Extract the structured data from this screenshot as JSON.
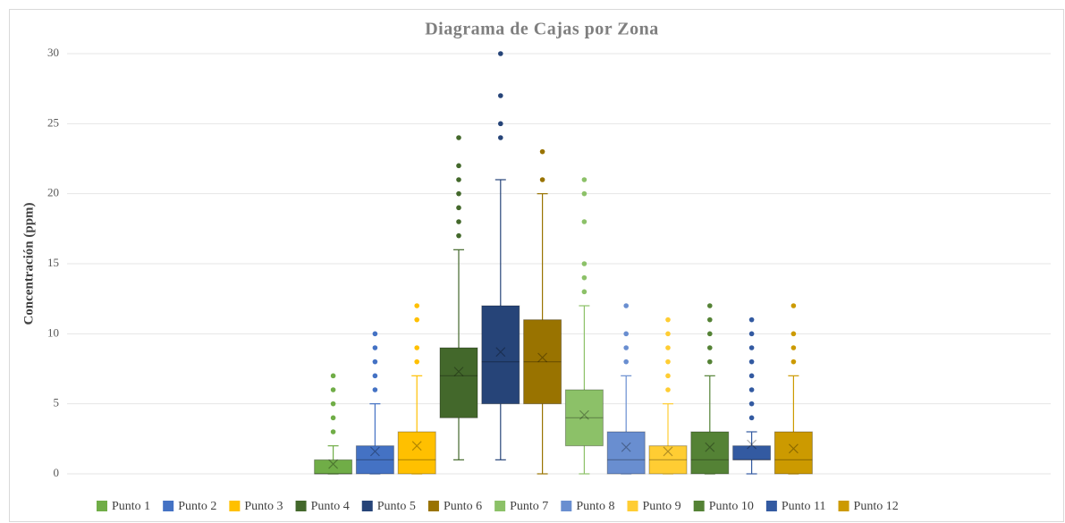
{
  "chart_data": {
    "type": "box",
    "title": "Diagrama de Cajas por Zona",
    "y_label": "Concentración (ppm)",
    "ylim": [
      0,
      30
    ],
    "yticks": [
      0,
      5,
      10,
      15,
      20,
      25,
      30
    ],
    "grid": true,
    "legend": "bottom",
    "series": [
      {
        "name": "Punto 1",
        "color": "#70ad47",
        "min": 0,
        "q1": 0,
        "median": 0,
        "q3": 1,
        "max": 2,
        "mean": 0.7,
        "outliers": [
          3,
          4,
          5,
          6,
          7
        ]
      },
      {
        "name": "Punto 2",
        "color": "#4472c4",
        "min": 0,
        "q1": 0,
        "median": 1,
        "q3": 2,
        "max": 5,
        "mean": 1.6,
        "outliers": [
          6,
          7,
          8,
          9,
          10
        ]
      },
      {
        "name": "Punto 3",
        "color": "#ffc000",
        "min": 0,
        "q1": 0,
        "median": 1,
        "q3": 3,
        "max": 7,
        "mean": 2,
        "outliers": [
          8,
          9,
          11,
          12
        ]
      },
      {
        "name": "Punto 4",
        "color": "#43682b",
        "min": 1,
        "q1": 4,
        "median": 7,
        "q3": 9,
        "max": 16,
        "mean": 7.3,
        "outliers": [
          17,
          18,
          19,
          20,
          21,
          22,
          24
        ]
      },
      {
        "name": "Punto 5",
        "color": "#264478",
        "min": 1,
        "q1": 5,
        "median": 8,
        "q3": 12,
        "max": 21,
        "mean": 8.7,
        "outliers": [
          24,
          25,
          27,
          30
        ]
      },
      {
        "name": "Punto 6",
        "color": "#997300",
        "min": 0,
        "q1": 5,
        "median": 8,
        "q3": 11,
        "max": 20,
        "mean": 8.3,
        "outliers": [
          21,
          23
        ]
      },
      {
        "name": "Punto 7",
        "color": "#8cc168",
        "min": 0,
        "q1": 2,
        "median": 4,
        "q3": 6,
        "max": 12,
        "mean": 4.2,
        "outliers": [
          13,
          14,
          15,
          18,
          20,
          21
        ]
      },
      {
        "name": "Punto 8",
        "color": "#698ed0",
        "min": 0,
        "q1": 0,
        "median": 1,
        "q3": 3,
        "max": 7,
        "mean": 1.9,
        "outliers": [
          8,
          9,
          10,
          12
        ]
      },
      {
        "name": "Punto 9",
        "color": "#ffcd33",
        "min": 0,
        "q1": 0,
        "median": 1,
        "q3": 2,
        "max": 5,
        "mean": 1.6,
        "outliers": [
          6,
          7,
          8,
          9,
          10,
          11
        ]
      },
      {
        "name": "Punto 10",
        "color": "#548235",
        "min": 0,
        "q1": 0,
        "median": 1,
        "q3": 3,
        "max": 7,
        "mean": 1.9,
        "outliers": [
          8,
          9,
          10,
          11,
          12
        ]
      },
      {
        "name": "Punto 11",
        "color": "#335aa1",
        "min": 0,
        "q1": 1,
        "median": 1,
        "q3": 2,
        "max": 3,
        "mean": 2.1,
        "outliers": [
          4,
          5,
          6,
          7,
          8,
          9,
          10,
          11
        ]
      },
      {
        "name": "Punto 12",
        "color": "#cc9a00",
        "min": 0,
        "q1": 0,
        "median": 1,
        "q3": 3,
        "max": 7,
        "mean": 1.8,
        "outliers": [
          8,
          9,
          10,
          12
        ]
      }
    ]
  }
}
